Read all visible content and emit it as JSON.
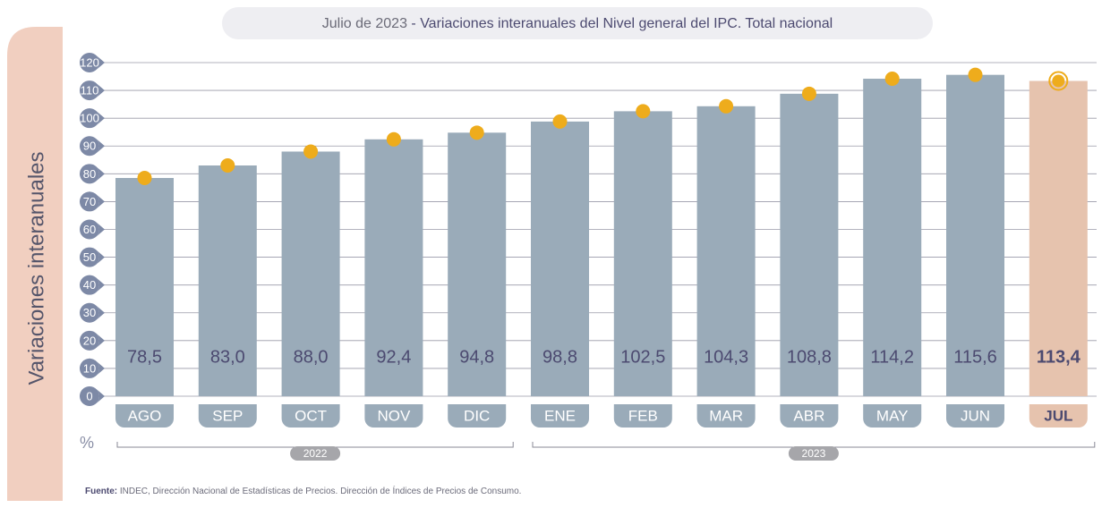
{
  "chart_data": {
    "type": "bar",
    "title_prefix": "Julio de 2023",
    "title": " - Variaciones interanuales del Nivel general del IPC. Total nacional",
    "y_axis_label": "Variaciones interanuales",
    "unit": "%",
    "categories": [
      "AGO",
      "SEP",
      "OCT",
      "NOV",
      "DIC",
      "ENE",
      "FEB",
      "MAR",
      "ABR",
      "MAY",
      "JUN",
      "JUL"
    ],
    "values": [
      78.5,
      83.0,
      88.0,
      92.4,
      94.8,
      98.8,
      102.5,
      104.3,
      108.8,
      114.2,
      115.6,
      113.4
    ],
    "value_labels": [
      "78,5",
      "83,0",
      "88,0",
      "92,4",
      "94,8",
      "98,8",
      "102,5",
      "104,3",
      "108,8",
      "114,2",
      "115,6",
      "113,4"
    ],
    "colors": [
      "#9aabb9",
      "#9aabb9",
      "#9aabb9",
      "#9aabb9",
      "#9aabb9",
      "#9aabb9",
      "#9aabb9",
      "#9aabb9",
      "#9aabb9",
      "#9aabb9",
      "#9aabb9",
      "#e6c3ae"
    ],
    "dot_color": "#eeac1c",
    "ylim": [
      0,
      120
    ],
    "yticks": [
      0,
      10,
      20,
      30,
      40,
      50,
      60,
      70,
      80,
      90,
      100,
      110,
      120
    ],
    "grid": true,
    "year_groups": [
      {
        "label": "2022",
        "span": 5
      },
      {
        "label": "2023",
        "span": 7
      }
    ],
    "source_label": "Fuente:",
    "source": " INDEC, Dirección Nacional de Estadísticas de Precios. Dirección de Índices de Precios de Consumo."
  }
}
